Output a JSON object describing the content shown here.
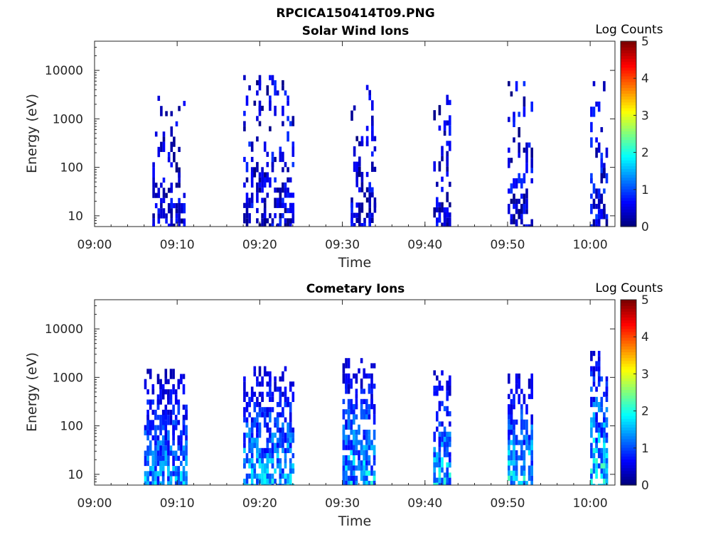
{
  "figure": {
    "title": "RPCICA150414T09.PNG"
  },
  "colors": {
    "colormap": [
      "#00007f",
      "#0000ff",
      "#007fff",
      "#00ffff",
      "#7fff7f",
      "#ffff00",
      "#ff7f00",
      "#ff0000",
      "#7f0000"
    ]
  },
  "chart_data": [
    {
      "type": "heatmap",
      "title": "Solar Wind Ions",
      "xlabel": "Time",
      "ylabel": "Energy (eV)",
      "x_range": [
        "09:00",
        "10:03"
      ],
      "x_ticks": [
        "09:00",
        "09:10",
        "09:20",
        "09:30",
        "09:40",
        "09:50",
        "10:00"
      ],
      "y_scale": "log",
      "y_range": [
        6,
        40000
      ],
      "y_ticks": [
        "10",
        "100",
        "1000",
        "10000"
      ],
      "colorbar": {
        "label": "Log Counts",
        "range": [
          0,
          5
        ],
        "ticks": [
          "0",
          "1",
          "2",
          "3",
          "4",
          "5"
        ]
      },
      "bursts": [
        {
          "start": "09:07",
          "end": "09:11",
          "max_energy": 3000,
          "max_log_counts": 0.8
        },
        {
          "start": "09:18",
          "end": "09:24",
          "max_energy": 8000,
          "max_log_counts": 0.9
        },
        {
          "start": "09:31",
          "end": "09:34",
          "max_energy": 5000,
          "max_log_counts": 0.8
        },
        {
          "start": "09:41",
          "end": "09:43",
          "max_energy": 4000,
          "max_log_counts": 0.8
        },
        {
          "start": "09:50",
          "end": "09:53",
          "max_energy": 6000,
          "max_log_counts": 0.9
        },
        {
          "start": "10:00",
          "end": "10:02",
          "max_energy": 6000,
          "max_log_counts": 1.0
        }
      ]
    },
    {
      "type": "heatmap",
      "title": "Cometary Ions",
      "xlabel": "Time",
      "ylabel": "Energy (eV)",
      "x_range": [
        "09:00",
        "10:03"
      ],
      "x_ticks": [
        "09:00",
        "09:10",
        "09:20",
        "09:30",
        "09:40",
        "09:50",
        "10:00"
      ],
      "y_scale": "log",
      "y_range": [
        6,
        40000
      ],
      "y_ticks": [
        "10",
        "100",
        "1000",
        "10000"
      ],
      "colorbar": {
        "label": "Log Counts",
        "range": [
          0,
          5
        ],
        "ticks": [
          "0",
          "1",
          "2",
          "3",
          "4",
          "5"
        ]
      },
      "bursts": [
        {
          "start": "09:06",
          "end": "09:11",
          "max_energy": 1500,
          "max_log_counts": 2.0
        },
        {
          "start": "09:18",
          "end": "09:24",
          "max_energy": 1700,
          "max_log_counts": 2.2
        },
        {
          "start": "09:30",
          "end": "09:34",
          "max_energy": 2500,
          "max_log_counts": 2.2
        },
        {
          "start": "09:41",
          "end": "09:43",
          "max_energy": 1400,
          "max_log_counts": 2.3
        },
        {
          "start": "09:50",
          "end": "09:53",
          "max_energy": 1200,
          "max_log_counts": 2.4
        },
        {
          "start": "10:00",
          "end": "10:02",
          "max_energy": 4500,
          "max_log_counts": 2.6
        }
      ]
    }
  ]
}
